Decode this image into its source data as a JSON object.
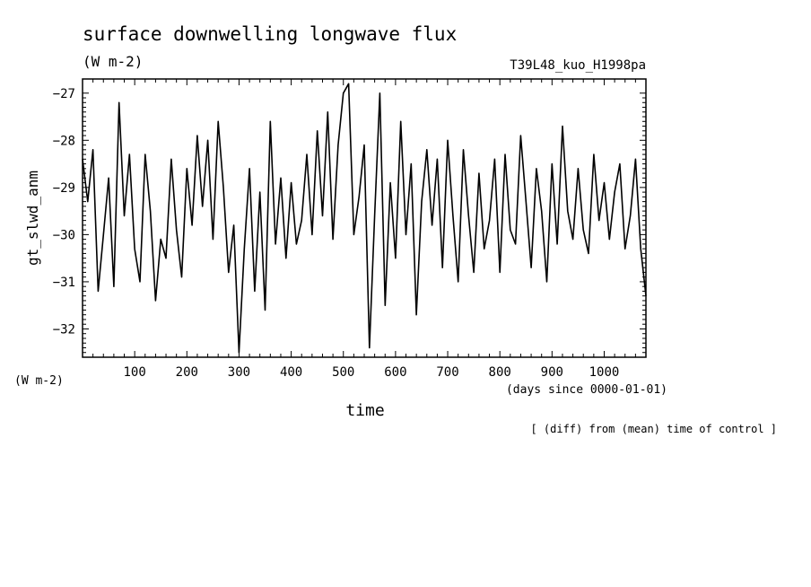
{
  "header": {
    "title": "surface downwelling longwave flux",
    "units_top": "(W m-2)",
    "experiment": "T39L48_kuo_H1998pa"
  },
  "footer": {
    "units_left": "(W m-2)",
    "xunit": "(days since 0000-01-01)",
    "note": "[ (diff) from (mean) time of control ]"
  },
  "chart_data": {
    "type": "line",
    "title": "surface downwelling longwave flux",
    "xlabel": "time",
    "ylabel": "gt_slwd_anm",
    "xlim": [
      0,
      1080
    ],
    "ylim": [
      -32.6,
      -26.7
    ],
    "xticks": [
      100,
      200,
      300,
      400,
      500,
      600,
      700,
      800,
      900,
      1000
    ],
    "yticks": [
      -32,
      -31,
      -30,
      -29,
      -28,
      -27
    ],
    "grid": false,
    "series": [
      {
        "x": [
          0,
          10,
          20,
          30,
          40,
          50,
          60,
          70,
          80,
          90,
          100,
          110,
          120,
          130,
          140,
          150,
          160,
          170,
          180,
          190,
          200,
          210,
          220,
          230,
          240,
          250,
          260,
          270,
          280,
          290,
          300,
          310,
          320,
          330,
          340,
          350,
          360,
          370,
          380,
          390,
          400,
          410,
          420,
          430,
          440,
          450,
          460,
          470,
          480,
          490,
          500,
          510,
          520,
          530,
          540,
          550,
          560,
          570,
          580,
          590,
          600,
          610,
          620,
          630,
          640,
          650,
          660,
          670,
          680,
          690,
          700,
          710,
          720,
          730,
          740,
          750,
          760,
          770,
          780,
          790,
          800,
          810,
          820,
          830,
          840,
          850,
          860,
          870,
          880,
          890,
          900,
          910,
          920,
          930,
          940,
          950,
          960,
          970,
          980,
          990,
          1000,
          1010,
          1020,
          1030,
          1040,
          1050,
          1060,
          1070,
          1080
        ],
        "values": [
          -28.4,
          -29.3,
          -28.2,
          -31.2,
          -30.0,
          -28.8,
          -31.1,
          -27.2,
          -29.6,
          -28.3,
          -30.3,
          -31.0,
          -28.3,
          -29.5,
          -31.4,
          -30.1,
          -30.5,
          -28.4,
          -29.9,
          -30.9,
          -28.6,
          -29.8,
          -27.9,
          -29.4,
          -28.0,
          -30.1,
          -27.6,
          -29.0,
          -30.8,
          -29.8,
          -32.5,
          -30.3,
          -28.6,
          -31.2,
          -29.1,
          -31.6,
          -27.6,
          -30.2,
          -28.8,
          -30.5,
          -28.9,
          -30.2,
          -29.7,
          -28.3,
          -30.0,
          -27.8,
          -29.6,
          -27.4,
          -30.1,
          -28.1,
          -27.0,
          -26.8,
          -30.0,
          -29.2,
          -28.1,
          -32.4,
          -29.6,
          -27.0,
          -31.5,
          -28.9,
          -30.5,
          -27.6,
          -30.0,
          -28.5,
          -31.7,
          -29.3,
          -28.2,
          -29.8,
          -28.4,
          -30.7,
          -28.0,
          -29.6,
          -31.0,
          -28.2,
          -29.6,
          -30.8,
          -28.7,
          -30.3,
          -29.7,
          -28.4,
          -30.8,
          -28.3,
          -29.9,
          -30.2,
          -27.9,
          -29.3,
          -30.7,
          -28.6,
          -29.5,
          -31.0,
          -28.5,
          -30.2,
          -27.7,
          -29.5,
          -30.1,
          -28.6,
          -29.9,
          -30.4,
          -28.3,
          -29.7,
          -28.9,
          -30.1,
          -29.1,
          -28.5,
          -30.3,
          -29.6,
          -28.4,
          -30.3,
          -31.3
        ]
      }
    ]
  }
}
